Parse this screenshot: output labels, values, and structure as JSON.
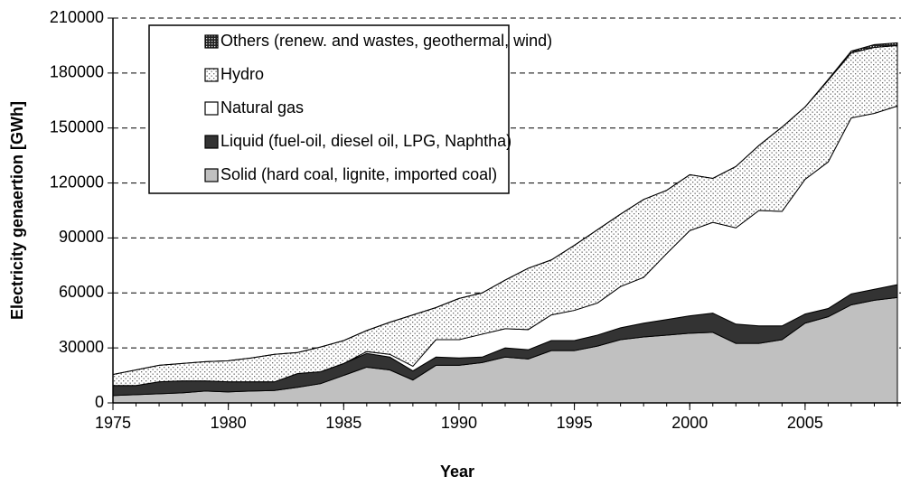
{
  "chart_data": {
    "type": "stacked_area",
    "x_label": "Year",
    "y_label": "Electricity genaertion [GWh]",
    "x": [
      1975,
      1976,
      1977,
      1978,
      1979,
      1980,
      1981,
      1982,
      1983,
      1984,
      1985,
      1986,
      1987,
      1988,
      1989,
      1990,
      1991,
      1992,
      1993,
      1994,
      1995,
      1996,
      1997,
      1998,
      1999,
      2000,
      2001,
      2002,
      2003,
      2004,
      2005,
      2006,
      2007,
      2008,
      2009
    ],
    "series": [
      {
        "name": "Solid (hard coal, lignite, imported coal)",
        "color": "#c0c0c0",
        "pattern": "solid",
        "values": [
          4000,
          4500,
          5000,
          5500,
          6500,
          6000,
          6500,
          6800,
          8500,
          10500,
          15000,
          19500,
          18000,
          12500,
          20500,
          20500,
          22000,
          25000,
          24000,
          28500,
          28500,
          31000,
          34500,
          36000,
          37000,
          38000,
          38500,
          32500,
          32500,
          34500,
          43500,
          47000,
          53500,
          56000,
          57500
        ]
      },
      {
        "name": "Liquid (fuel-oil, diesel oil, LPG, Naphtha)",
        "color": "#333333",
        "pattern": "solid",
        "values": [
          5500,
          5000,
          6500,
          6500,
          5500,
          5500,
          5000,
          4700,
          7500,
          6500,
          6500,
          7500,
          7000,
          5000,
          4500,
          4000,
          3000,
          5000,
          5000,
          5500,
          5500,
          6000,
          6500,
          7500,
          8500,
          9500,
          10500,
          10500,
          9500,
          7500,
          5000,
          4500,
          6000,
          6000,
          7000
        ]
      },
      {
        "name": "Natural gas",
        "color": "#ffffff",
        "pattern": "solid",
        "values": [
          0,
          0,
          0,
          0,
          0,
          0,
          0,
          0,
          0,
          0,
          0,
          1000,
          1500,
          2500,
          9500,
          10000,
          12500,
          10500,
          11000,
          14000,
          16500,
          17500,
          22500,
          25000,
          36000,
          46500,
          49500,
          52500,
          63000,
          62500,
          73500,
          80000,
          96000,
          96000,
          97500
        ]
      },
      {
        "name": "Hydro",
        "color": "#808080",
        "pattern": "dots",
        "values": [
          6000,
          8500,
          9000,
          9500,
          10500,
          11500,
          13000,
          15000,
          11500,
          13500,
          12500,
          11500,
          17500,
          28000,
          17500,
          22500,
          22500,
          26500,
          33500,
          30000,
          35500,
          40000,
          39500,
          42500,
          34500,
          30500,
          24000,
          33500,
          35500,
          46000,
          39500,
          44500,
          35500,
          36000,
          33000
        ]
      },
      {
        "name": "Others (renew. and wastes, geothermal, wind)",
        "color": "#222222",
        "pattern": "checker",
        "values": [
          0,
          0,
          0,
          0,
          0,
          0,
          0,
          0,
          0,
          0,
          0,
          0,
          0,
          0,
          0,
          0,
          0,
          0,
          0,
          0,
          0,
          0,
          0,
          0,
          0,
          0,
          0,
          0,
          0,
          0,
          0,
          500,
          1000,
          1500,
          1500
        ]
      }
    ],
    "xlim": [
      1975,
      2009
    ],
    "xticks": [
      1975,
      1980,
      1985,
      1990,
      1995,
      2000,
      2005
    ],
    "ylim": [
      0,
      210000
    ],
    "yticks": [
      0,
      30000,
      60000,
      90000,
      120000,
      150000,
      180000,
      210000
    ],
    "grid": true,
    "legend": "upper left"
  }
}
